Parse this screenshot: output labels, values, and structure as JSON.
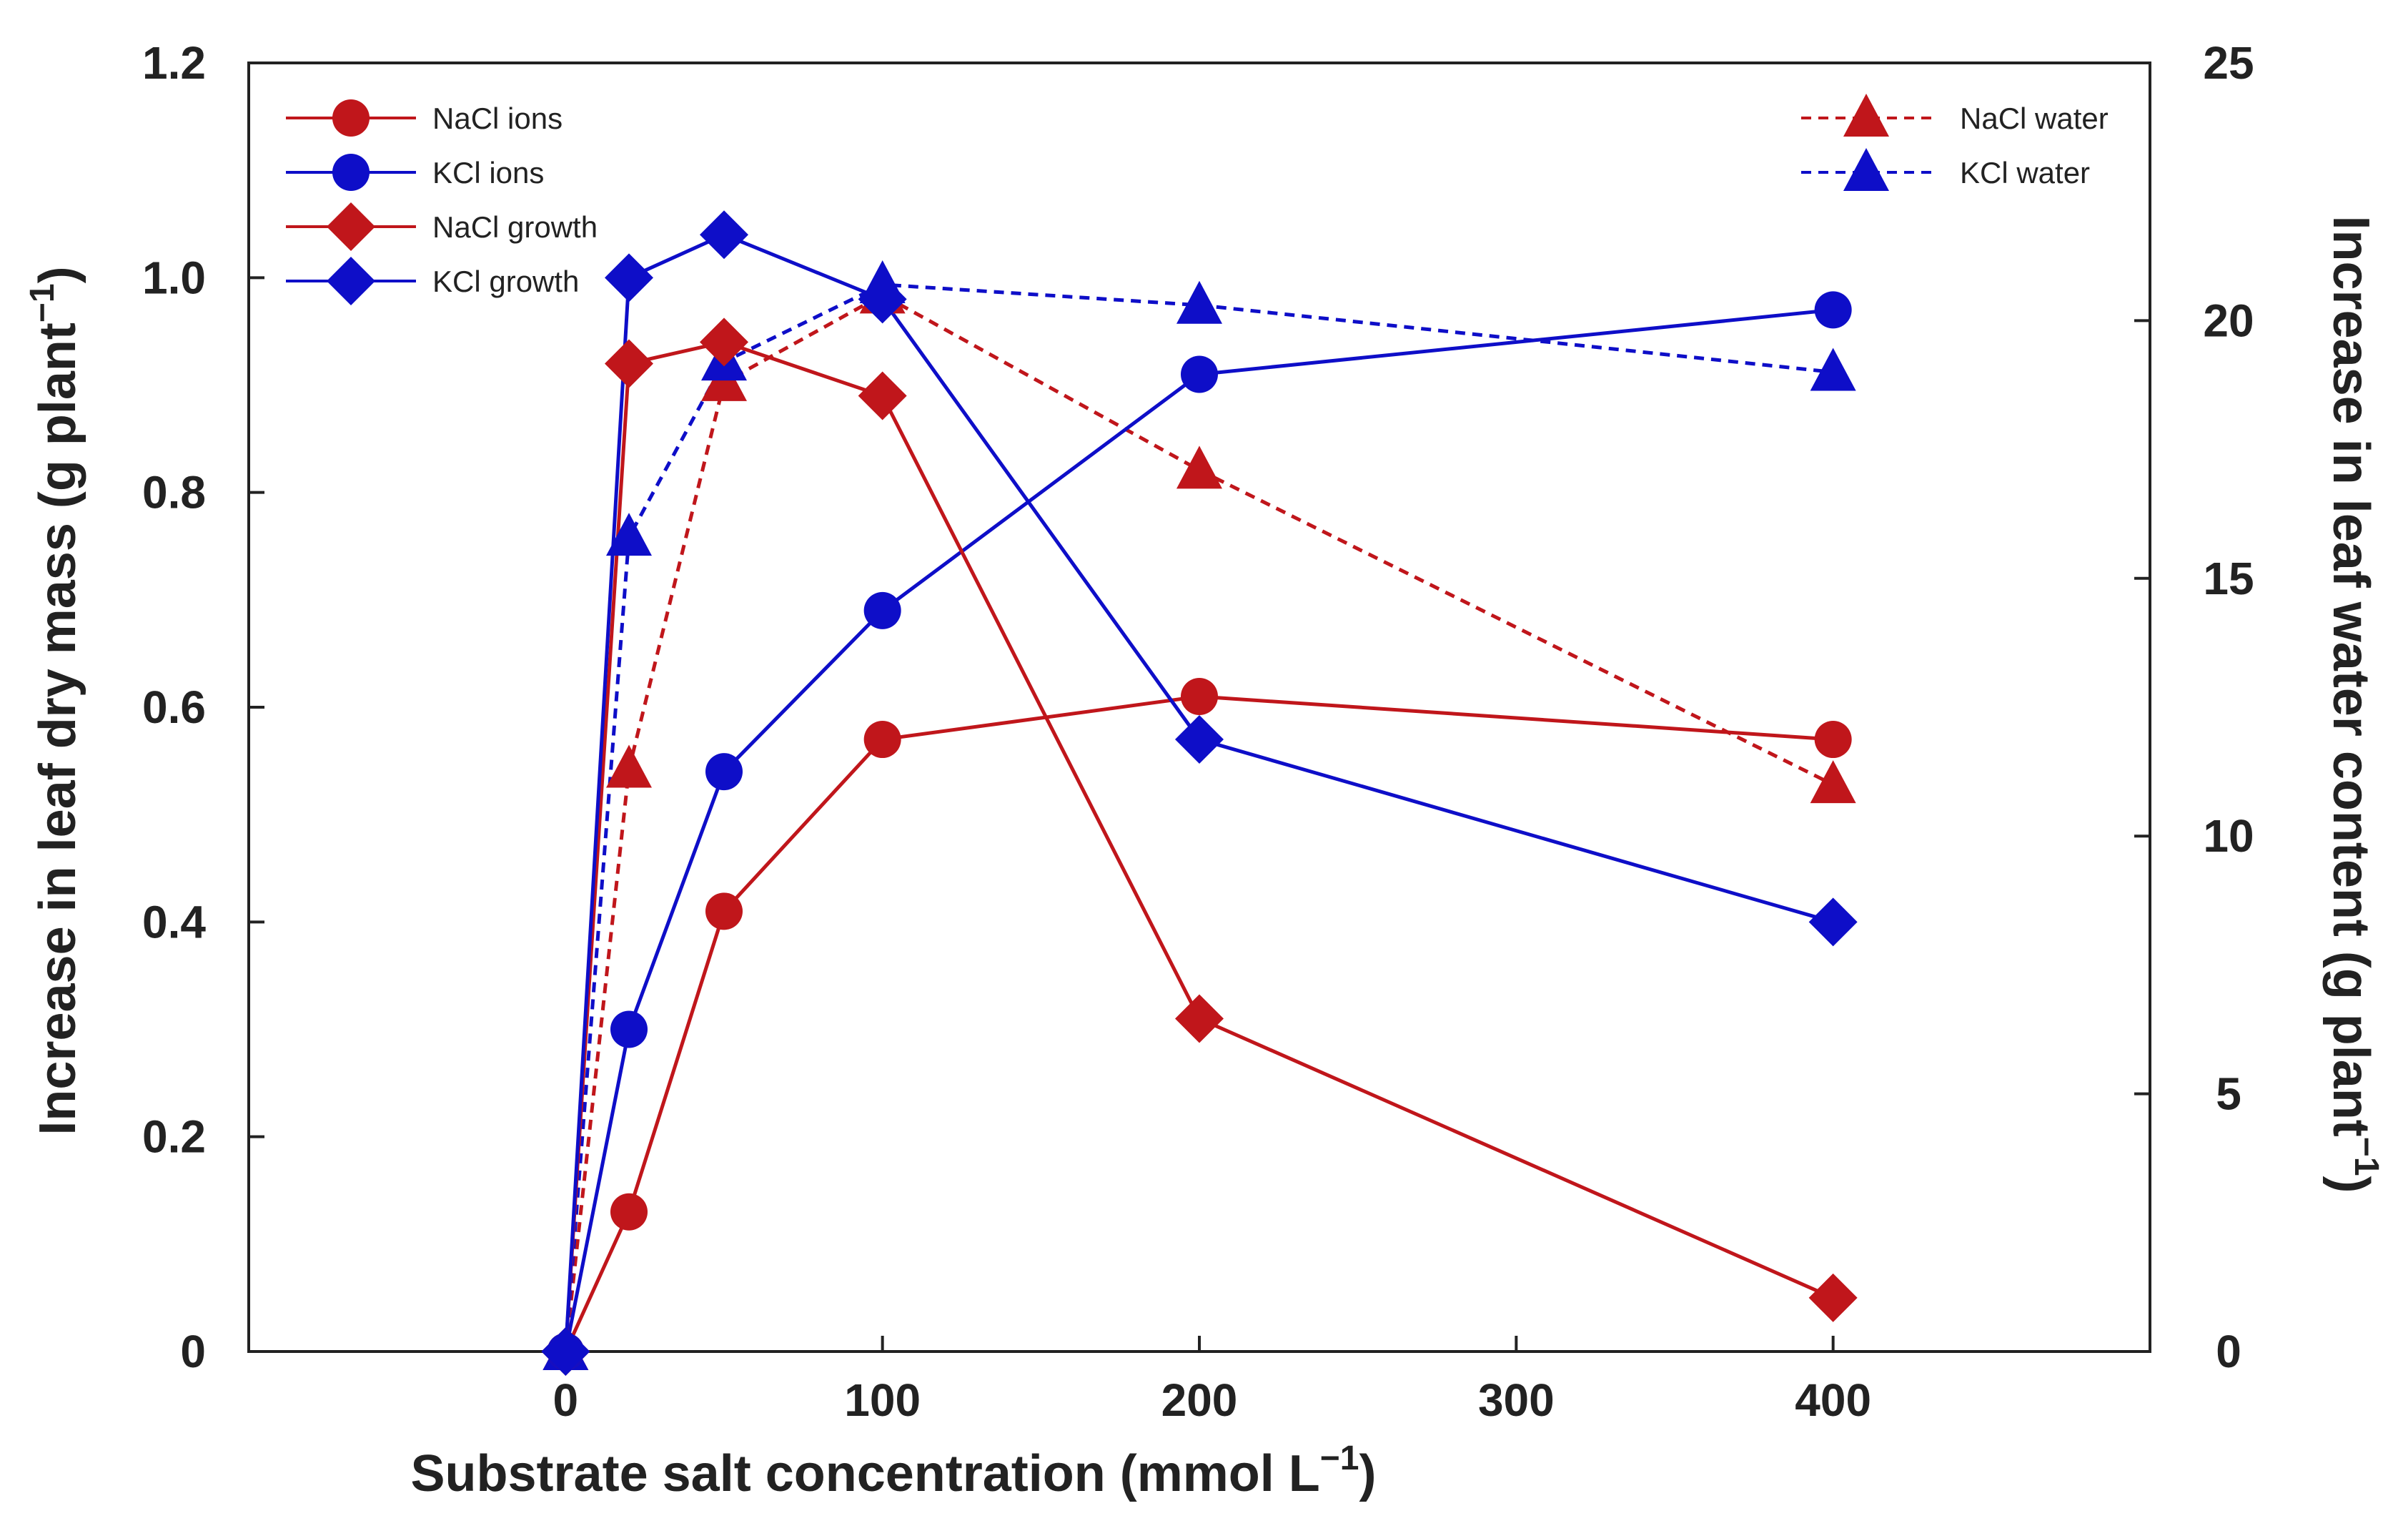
{
  "chart_data": {
    "type": "line",
    "x_positions": [
      0,
      20,
      50,
      100,
      200,
      400
    ],
    "x_tick_values": [
      0,
      100,
      200,
      300,
      400
    ],
    "x_tick_labels": [
      "0",
      "100",
      "200",
      "300",
      "400"
    ],
    "xlabel_main": "Substrate salt concentration (mmol L",
    "xlabel_sup": "−1",
    "xlabel_end": ")",
    "ylabel_left_main": "Increase in leaf dry mass (g plant",
    "ylabel_left_sup": "−1",
    "ylabel_left_end": ")",
    "ylabel_right_main": "Increase in leaf water content (g plant",
    "ylabel_right_sup": "−1",
    "ylabel_right_end": ")",
    "ylim_left": [
      0,
      1.2
    ],
    "ylim_right": [
      0,
      25
    ],
    "y_left_ticks": [
      0,
      0.2,
      0.4,
      0.6,
      0.8,
      1.0,
      1.2
    ],
    "y_left_tick_labels": [
      "0",
      "0.2",
      "0.4",
      "0.6",
      "0.8",
      "1.0",
      "1.2"
    ],
    "y_right_ticks": [
      0,
      5,
      10,
      15,
      20,
      25
    ],
    "y_right_tick_labels": [
      "0",
      "5",
      "10",
      "15",
      "20",
      "25"
    ],
    "series": [
      {
        "name": "NaCl ions",
        "axis": "left",
        "marker": "circle",
        "dash": false,
        "color": "#c0161b",
        "values": [
          0,
          0.13,
          0.41,
          0.57,
          0.61,
          0.57
        ]
      },
      {
        "name": "KCl ions",
        "axis": "left",
        "marker": "circle",
        "dash": false,
        "color": "#0e0ec8",
        "values": [
          0,
          0.3,
          0.54,
          0.69,
          0.91,
          0.97
        ]
      },
      {
        "name": "NaCl growth",
        "axis": "left",
        "marker": "diamond",
        "dash": false,
        "color": "#c0161b",
        "values": [
          0,
          0.92,
          0.94,
          0.89,
          0.31,
          0.05
        ]
      },
      {
        "name": "KCl growth",
        "axis": "left",
        "marker": "diamond",
        "dash": false,
        "color": "#0e0ec8",
        "values": [
          0,
          1.0,
          1.04,
          0.98,
          0.57,
          0.4
        ]
      },
      {
        "name": "NaCl water",
        "axis": "right",
        "marker": "triangle",
        "dash": true,
        "color": "#c0161b",
        "values": [
          0,
          11.3,
          18.8,
          20.5,
          17.1,
          11.0
        ]
      },
      {
        "name": "KCl water",
        "axis": "right",
        "marker": "triangle",
        "dash": true,
        "color": "#0e0ec8",
        "values": [
          0,
          15.8,
          19.2,
          20.7,
          20.3,
          19.0
        ]
      }
    ],
    "legend_left": [
      "NaCl ions",
      "KCl ions",
      "NaCl growth",
      "KCl growth"
    ],
    "legend_right": [
      "NaCl water",
      "KCl water"
    ],
    "grid": false
  }
}
